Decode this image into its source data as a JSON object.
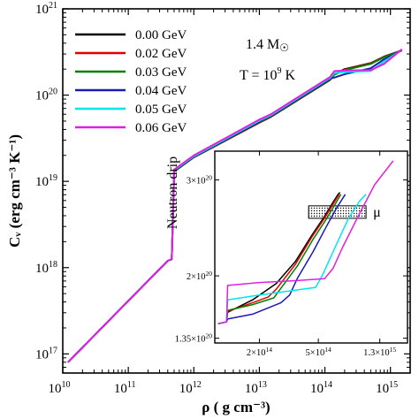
{
  "chart_data": {
    "type": "line",
    "xlabel": "ρ ( g cm⁻³)",
    "ylabel": "Cᵥ (erg cm⁻³ K⁻¹)",
    "xscale": "log",
    "yscale": "log",
    "xlim": [
      10000000000.0,
      2000000000000000.0
    ],
    "ylim": [
      6e+16,
      1e+21
    ],
    "x_ticks": [
      {
        "value": 10000000000.0,
        "base": "10",
        "exp": "10"
      },
      {
        "value": 100000000000.0,
        "base": "10",
        "exp": "11"
      },
      {
        "value": 1000000000000.0,
        "base": "10",
        "exp": "12"
      },
      {
        "value": 10000000000000.0,
        "base": "10",
        "exp": "13"
      },
      {
        "value": 100000000000000.0,
        "base": "10",
        "exp": "14"
      },
      {
        "value": 1000000000000000.0,
        "base": "10",
        "exp": "15"
      }
    ],
    "y_ticks": [
      {
        "value": 1e+17,
        "base": "10",
        "exp": "17"
      },
      {
        "value": 1e+18,
        "base": "10",
        "exp": "18"
      },
      {
        "value": 1e+19,
        "base": "10",
        "exp": "19"
      },
      {
        "value": 1e+20,
        "base": "10",
        "exp": "20"
      },
      {
        "value": 1e+21,
        "base": "10",
        "exp": "21"
      }
    ],
    "legend_position": "top-left",
    "annotations": {
      "mass": "1.4 M",
      "mass_symbol": "☉",
      "temperature": "T = 10",
      "temperature_exp": "9",
      "temperature_unit": " K",
      "neutron_drip": "Neutron drip"
    },
    "series": [
      {
        "name": "0.00 GeV",
        "color": "#000000",
        "x": [
          12000000000.0,
          400000000000.0,
          460000000000.0,
          500000000000.0,
          1000000000000.0,
          10000000000000.0,
          15000000000000.0,
          120000000000000.0,
          140000000000000.0,
          200000000000000.0,
          500000000000000.0,
          800000000000000.0,
          1500000000000000.0
        ],
        "y": [
          8e+16,
          1.2e+18,
          1.25e+18,
          1.3e+19,
          1.9e+19,
          4.8e+19,
          5.6e+19,
          1.5e+20,
          1.75e+20,
          2e+20,
          2.35e+20,
          2.8e+20,
          3.3e+20
        ]
      },
      {
        "name": "0.02 GeV",
        "color": "#e00000",
        "x": [
          12000000000.0,
          400000000000.0,
          460000000000.0,
          500000000000.0,
          1000000000000.0,
          10000000000000.0,
          15000000000000.0,
          120000000000000.0,
          140000000000000.0,
          200000000000000.0,
          500000000000000.0,
          800000000000000.0,
          1500000000000000.0
        ],
        "y": [
          8e+16,
          1.2e+18,
          1.25e+18,
          1.31e+19,
          1.91e+19,
          4.85e+19,
          5.65e+19,
          1.52e+20,
          1.74e+20,
          1.97e+20,
          2.33e+20,
          2.78e+20,
          3.3e+20
        ]
      },
      {
        "name": "0.03 GeV",
        "color": "#008000",
        "x": [
          12000000000.0,
          400000000000.0,
          460000000000.0,
          500000000000.0,
          1000000000000.0,
          10000000000000.0,
          15000000000000.0,
          120000000000000.0,
          140000000000000.0,
          200000000000000.0,
          500000000000000.0,
          800000000000000.0,
          1500000000000000.0
        ],
        "y": [
          8e+16,
          1.2e+18,
          1.25e+18,
          1.32e+19,
          1.92e+19,
          4.9e+19,
          5.7e+19,
          1.53e+20,
          1.73e+20,
          1.95e+20,
          2.3e+20,
          2.75e+20,
          3.3e+20
        ]
      },
      {
        "name": "0.04 GeV",
        "color": "#1a1ab4",
        "x": [
          12000000000.0,
          400000000000.0,
          460000000000.0,
          500000000000.0,
          1000000000000.0,
          10000000000000.0,
          15000000000000.0,
          120000000000000.0,
          140000000000000.0,
          200000000000000.0,
          500000000000000.0,
          800000000000000.0,
          1500000000000000.0
        ],
        "y": [
          8e+16,
          1.2e+18,
          1.25e+18,
          1.33e+19,
          1.93e+19,
          4.95e+19,
          5.75e+19,
          1.55e+20,
          1.6e+20,
          1.75e+20,
          2.05e+20,
          2.6e+20,
          3.3e+20
        ]
      },
      {
        "name": "0.05 GeV",
        "color": "#00e5ee",
        "x": [
          12000000000.0,
          400000000000.0,
          460000000000.0,
          500000000000.0,
          1000000000000.0,
          10000000000000.0,
          15000000000000.0,
          120000000000000.0,
          140000000000000.0,
          200000000000000.0,
          500000000000000.0,
          800000000000000.0,
          1500000000000000.0
        ],
        "y": [
          8e+16,
          1.2e+18,
          1.25e+18,
          1.35e+19,
          1.96e+19,
          5.05e+19,
          5.85e+19,
          1.58e+20,
          1.8e+20,
          1.85e+20,
          1.9e+20,
          2.45e+20,
          3.35e+20
        ]
      },
      {
        "name": "0.06 GeV",
        "color": "#e020e0",
        "x": [
          12000000000.0,
          400000000000.0,
          460000000000.0,
          500000000000.0,
          1000000000000.0,
          10000000000000.0,
          15000000000000.0,
          120000000000000.0,
          140000000000000.0,
          200000000000000.0,
          500000000000000.0,
          800000000000000.0,
          1500000000000000.0
        ],
        "y": [
          8e+16,
          1.2e+18,
          1.25e+18,
          1.37e+19,
          2e+19,
          5.2e+19,
          6e+19,
          1.62e+20,
          1.9e+20,
          1.93e+20,
          1.95e+20,
          2.3e+20,
          3.4e+20
        ]
      }
    ],
    "inset": {
      "xscale": "log",
      "yscale": "linear",
      "xlim": [
        100000000000000.0,
        2000000000000000.0
      ],
      "ylim": [
        1.3e+20,
        3.3e+20
      ],
      "x_ticks": [
        {
          "value": 200000000000000.0,
          "base": "2×10",
          "exp": "14"
        },
        {
          "value": 500000000000000.0,
          "base": "5×10",
          "exp": "14"
        },
        {
          "value": 1300000000000000.0,
          "base": "1.3×10",
          "exp": "15"
        }
      ],
      "y_ticks": [
        {
          "value": 1.35e+20,
          "base": "1.35×10",
          "exp": "20"
        },
        {
          "value": 2e+20,
          "base": "2×10",
          "exp": "20"
        },
        {
          "value": 3e+20,
          "base": "3×10",
          "exp": "20"
        }
      ],
      "mu_label": "μ",
      "mu_box": {
        "x": [
          430000000000000.0,
          1050000000000000.0
        ],
        "y": [
          2.6e+20,
          2.73e+20
        ]
      },
      "series": [
        {
          "name": "0.00 GeV",
          "color": "#000000",
          "x": [
            105000000000000.0,
            120000000000000.0,
            122000000000000.0,
            180000000000000.0,
            260000000000000.0,
            350000000000000.0,
            450000000000000.0,
            550000000000000.0,
            630000000000000.0,
            680000000000000.0,
            700000000000000.0
          ],
          "y": [
            1.5e+20,
            1.52e+20,
            1.62e+20,
            1.75e+20,
            1.92e+20,
            2.15e+20,
            2.42e+20,
            2.62e+20,
            2.77e+20,
            2.85e+20,
            2.87e+20
          ]
        },
        {
          "name": "0.02 GeV",
          "color": "#e00000",
          "x": [
            105000000000000.0,
            120000000000000.0,
            122000000000000.0,
            180000000000000.0,
            230000000000000.0,
            260000000000000.0,
            350000000000000.0,
            450000000000000.0,
            550000000000000.0,
            630000000000000.0,
            690000000000000.0
          ],
          "y": [
            1.5e+20,
            1.52e+20,
            1.63e+20,
            1.72e+20,
            1.78e+20,
            1.86e+20,
            2.12e+20,
            2.4e+20,
            2.6e+20,
            2.75e+20,
            2.85e+20
          ]
        },
        {
          "name": "0.03 GeV",
          "color": "#008000",
          "x": [
            105000000000000.0,
            120000000000000.0,
            122000000000000.0,
            180000000000000.0,
            250000000000000.0,
            270000000000000.0,
            360000000000000.0,
            460000000000000.0,
            560000000000000.0,
            640000000000000.0,
            710000000000000.0
          ],
          "y": [
            1.5e+20,
            1.52e+20,
            1.64e+20,
            1.7e+20,
            1.77e+20,
            1.84e+20,
            2.1e+20,
            2.38e+20,
            2.58e+20,
            2.73e+20,
            2.85e+20
          ]
        },
        {
          "name": "0.04 GeV",
          "color": "#1a1ab4",
          "x": [
            105000000000000.0,
            120000000000000.0,
            122000000000000.0,
            180000000000000.0,
            280000000000000.0,
            320000000000000.0,
            360000000000000.0,
            460000000000000.0,
            560000000000000.0,
            660000000000000.0,
            760000000000000.0
          ],
          "y": [
            1.5e+20,
            1.52e+20,
            1.55e+20,
            1.6e+20,
            1.72e+20,
            1.8e+20,
            1.97e+20,
            2.25e+20,
            2.5e+20,
            2.7e+20,
            2.85e+20
          ]
        },
        {
          "name": "0.05 GeV",
          "color": "#00e5ee",
          "x": [
            105000000000000.0,
            120000000000000.0,
            122000000000000.0,
            200000000000000.0,
            350000000000000.0,
            480000000000000.0,
            530000000000000.0,
            650000000000000.0,
            800000000000000.0,
            950000000000000.0,
            1050000000000000.0
          ],
          "y": [
            1.5e+20,
            1.52e+20,
            1.75e+20,
            1.8e+20,
            1.85e+20,
            1.88e+20,
            2e+20,
            2.3e+20,
            2.6e+20,
            2.78e+20,
            2.85e+20
          ]
        },
        {
          "name": "0.06 GeV",
          "color": "#e020e0",
          "x": [
            105000000000000.0,
            120000000000000.0,
            122000000000000.0,
            200000000000000.0,
            350000000000000.0,
            550000000000000.0,
            630000000000000.0,
            730000000000000.0,
            950000000000000.0,
            1200000000000000.0,
            1600000000000000.0
          ],
          "y": [
            1.5e+20,
            1.52e+20,
            1.9e+20,
            1.93e+20,
            1.95e+20,
            1.97e+20,
            2.08e+20,
            2.3e+20,
            2.65e+20,
            2.95e+20,
            3.2e+20
          ]
        }
      ]
    }
  }
}
